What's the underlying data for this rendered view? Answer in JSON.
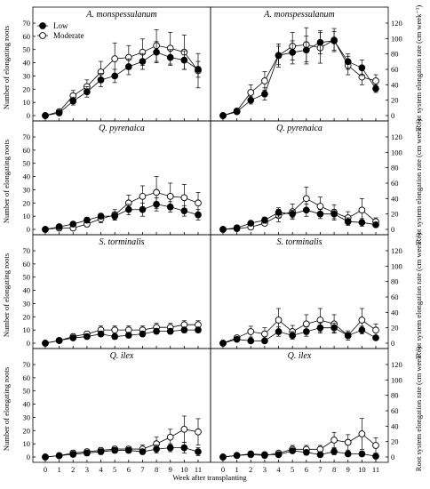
{
  "chart_data": {
    "type": "line",
    "x": [
      0,
      1,
      2,
      3,
      4,
      5,
      6,
      7,
      8,
      9,
      10,
      11
    ],
    "xlabel": "Week after transplanting",
    "ylabel_left": "Number of elongating roots",
    "ylabel_right": "Root system elongation rate (cm week⁻¹)",
    "left_yticks": [
      "0",
      "10",
      "20",
      "30",
      "40",
      "50",
      "60",
      "70"
    ],
    "right_yticks": [
      "0",
      "20",
      "40",
      "60",
      "80",
      "100",
      "120"
    ],
    "left_ylim": [
      0,
      70
    ],
    "right_ylim": [
      0,
      120
    ],
    "legend": {
      "placement": "top-left",
      "entries": [
        "Low",
        "Moderate"
      ]
    },
    "series_styles": {
      "Low": "filled-circle",
      "Moderate": "open-circle"
    },
    "panels": [
      {
        "row": 0,
        "col": 0,
        "title": "A. monspessulanum",
        "axis": "left",
        "series": [
          {
            "name": "Low",
            "values": [
              0,
              2,
              11,
              18,
              27,
              30,
              37,
              41,
              48,
              44,
              42,
              35
            ],
            "errors": [
              0,
              1,
              3,
              4,
              5,
              5,
              6,
              6,
              8,
              6,
              7,
              6
            ]
          },
          {
            "name": "Moderate",
            "values": [
              0,
              3,
              15,
              22,
              33,
              43,
              44,
              48,
              53,
              51,
              48,
              34
            ],
            "errors": [
              0,
              1,
              4,
              5,
              8,
              12,
              9,
              10,
              12,
              12,
              13,
              13
            ]
          }
        ]
      },
      {
        "row": 0,
        "col": 1,
        "title": "A. monspessulanum",
        "axis": "right",
        "series": [
          {
            "name": "Low",
            "values": [
              0,
              5,
              20,
              28,
              78,
              82,
              85,
              95,
              97,
              70,
              62,
              35
            ],
            "errors": [
              0,
              2,
              5,
              8,
              12,
              15,
              18,
              15,
              12,
              10,
              10,
              5
            ]
          },
          {
            "name": "Moderate",
            "values": [
              0,
              6,
              30,
              45,
              78,
              90,
              92,
              88,
              98,
              65,
              50,
              45
            ],
            "errors": [
              0,
              3,
              10,
              12,
              15,
              18,
              22,
              20,
              15,
              12,
              10,
              8
            ]
          }
        ]
      },
      {
        "row": 1,
        "col": 0,
        "title": "Q. pyrenaica",
        "axis": "left",
        "series": [
          {
            "name": "Low",
            "values": [
              0,
              2,
              4,
              7,
              10,
              10,
              15,
              15,
              19,
              17,
              14,
              11
            ],
            "errors": [
              0,
              1,
              1,
              2,
              2,
              3,
              4,
              5,
              5,
              4,
              4,
              4
            ]
          },
          {
            "name": "Moderate",
            "values": [
              0,
              1,
              1,
              4,
              8,
              11,
              20,
              25,
              28,
              25,
              24,
              20
            ],
            "errors": [
              0,
              0.5,
              1,
              2,
              3,
              4,
              6,
              8,
              12,
              10,
              10,
              8
            ]
          }
        ]
      },
      {
        "row": 1,
        "col": 1,
        "title": "Q. pyrenaica",
        "axis": "right",
        "series": [
          {
            "name": "Low",
            "values": [
              0,
              2,
              8,
              12,
              22,
              20,
              25,
              20,
              20,
              10,
              9,
              6
            ],
            "errors": [
              0,
              1,
              2,
              4,
              6,
              5,
              8,
              6,
              6,
              5,
              5,
              3
            ]
          },
          {
            "name": "Moderate",
            "values": [
              0,
              1,
              3,
              8,
              18,
              23,
              40,
              30,
              22,
              15,
              25,
              10
            ],
            "errors": [
              0,
              1,
              2,
              3,
              8,
              10,
              15,
              12,
              10,
              8,
              15,
              5
            ]
          }
        ]
      },
      {
        "row": 2,
        "col": 0,
        "title": "S. torminalis",
        "axis": "left",
        "series": [
          {
            "name": "Low",
            "values": [
              0,
              2,
              4,
              5,
              7,
              5,
              6,
              7,
              9,
              9,
              10,
              10
            ],
            "errors": [
              0,
              1,
              1,
              1,
              2,
              2,
              2,
              2,
              2,
              2,
              2,
              2
            ]
          },
          {
            "name": "Moderate",
            "values": [
              0,
              2,
              5,
              7,
              10,
              10,
              10,
              10,
              12,
              12,
              14,
              14
            ],
            "errors": [
              0,
              1,
              2,
              2,
              3,
              3,
              3,
              3,
              3,
              3,
              3,
              3
            ]
          }
        ]
      },
      {
        "row": 2,
        "col": 1,
        "title": "S. torminalis",
        "axis": "right",
        "series": [
          {
            "name": "Low",
            "values": [
              0,
              5,
              3,
              3,
              15,
              10,
              15,
              20,
              20,
              10,
              17,
              7
            ],
            "errors": [
              0,
              2,
              2,
              2,
              6,
              5,
              6,
              7,
              6,
              4,
              5,
              3
            ]
          },
          {
            "name": "Moderate",
            "values": [
              0,
              7,
              15,
              12,
              30,
              15,
              25,
              30,
              25,
              10,
              30,
              17
            ],
            "errors": [
              0,
              3,
              7,
              8,
              15,
              8,
              12,
              15,
              12,
              6,
              15,
              8
            ]
          }
        ]
      },
      {
        "row": 3,
        "col": 0,
        "title": "Q. ilex",
        "axis": "left",
        "series": [
          {
            "name": "Low",
            "values": [
              0,
              1,
              2,
              3,
              4,
              5,
              5,
              4,
              6,
              7,
              7,
              4
            ],
            "errors": [
              0,
              1,
              1,
              2,
              2,
              2,
              2,
              2,
              3,
              3,
              4,
              3
            ]
          },
          {
            "name": "Moderate",
            "values": [
              0,
              1,
              3,
              4,
              5,
              6,
              6,
              6,
              10,
              15,
              21,
              19
            ],
            "errors": [
              0,
              1,
              2,
              2,
              2,
              2,
              2,
              3,
              5,
              6,
              10,
              10
            ]
          }
        ]
      },
      {
        "row": 3,
        "col": 1,
        "title": "Q. ilex",
        "axis": "right",
        "series": [
          {
            "name": "Low",
            "values": [
              0,
              2,
              4,
              3,
              3,
              8,
              6,
              3,
              7,
              4,
              4,
              1
            ],
            "errors": [
              0,
              1,
              2,
              2,
              2,
              3,
              3,
              2,
              4,
              3,
              3,
              2
            ]
          },
          {
            "name": "Moderate",
            "values": [
              0,
              2,
              3,
              2,
              5,
              10,
              10,
              10,
              22,
              19,
              30,
              15
            ],
            "errors": [
              0,
              1,
              2,
              2,
              3,
              5,
              5,
              5,
              10,
              10,
              20,
              10
            ]
          }
        ]
      }
    ]
  }
}
